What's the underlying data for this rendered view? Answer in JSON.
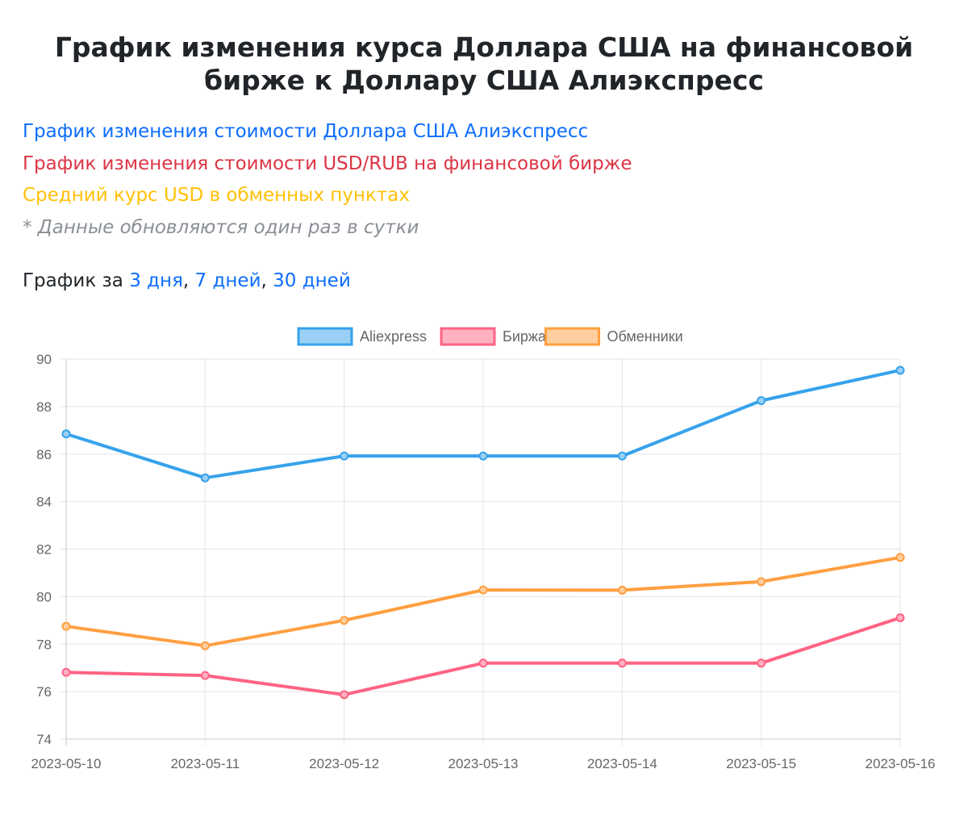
{
  "page": {
    "title": "График изменения курса Доллара США на финансовой бирже к Доллару США Алиэкспресс",
    "legend_lines": [
      {
        "text": "График изменения стоимости Доллара США Алиэкспресс",
        "color": "#0d6efd"
      },
      {
        "text": "График изменения стоимости USD/RUB на финансовой бирже",
        "color": "#dc3545"
      },
      {
        "text": "Средний курс USD в обменных пунктах",
        "color": "#ffc107"
      },
      {
        "text": "* Данные обновляются один раз в сутки",
        "color": "#8a8f96"
      }
    ],
    "period": {
      "prefix": "График за",
      "links": [
        "3 дня",
        "7 дней",
        "30 дней"
      ],
      "separator": ","
    }
  },
  "chart_data": {
    "type": "line",
    "x": [
      "2023-05-10",
      "2023-05-11",
      "2023-05-12",
      "2023-05-13",
      "2023-05-14",
      "2023-05-15",
      "2023-05-16"
    ],
    "ylim": [
      74,
      90
    ],
    "yticks": [
      74,
      76,
      78,
      80,
      82,
      84,
      86,
      88,
      90
    ],
    "grid": true,
    "legend_position": "top",
    "series": [
      {
        "name": "Aliexpress",
        "color": "#36a2eb",
        "fill": "#9ad0f5",
        "values": [
          86.85,
          85.0,
          85.92,
          85.92,
          85.92,
          88.25,
          89.53
        ]
      },
      {
        "name": "Биржа",
        "color": "#ff6384",
        "fill": "#ffb1c1",
        "values": [
          76.81,
          76.68,
          75.87,
          77.2,
          77.2,
          77.2,
          79.11
        ]
      },
      {
        "name": "Обменники",
        "color": "#ff9f40",
        "fill": "#ffcf9f",
        "values": [
          78.75,
          77.93,
          79.0,
          80.28,
          80.27,
          80.63,
          81.65
        ]
      }
    ]
  }
}
